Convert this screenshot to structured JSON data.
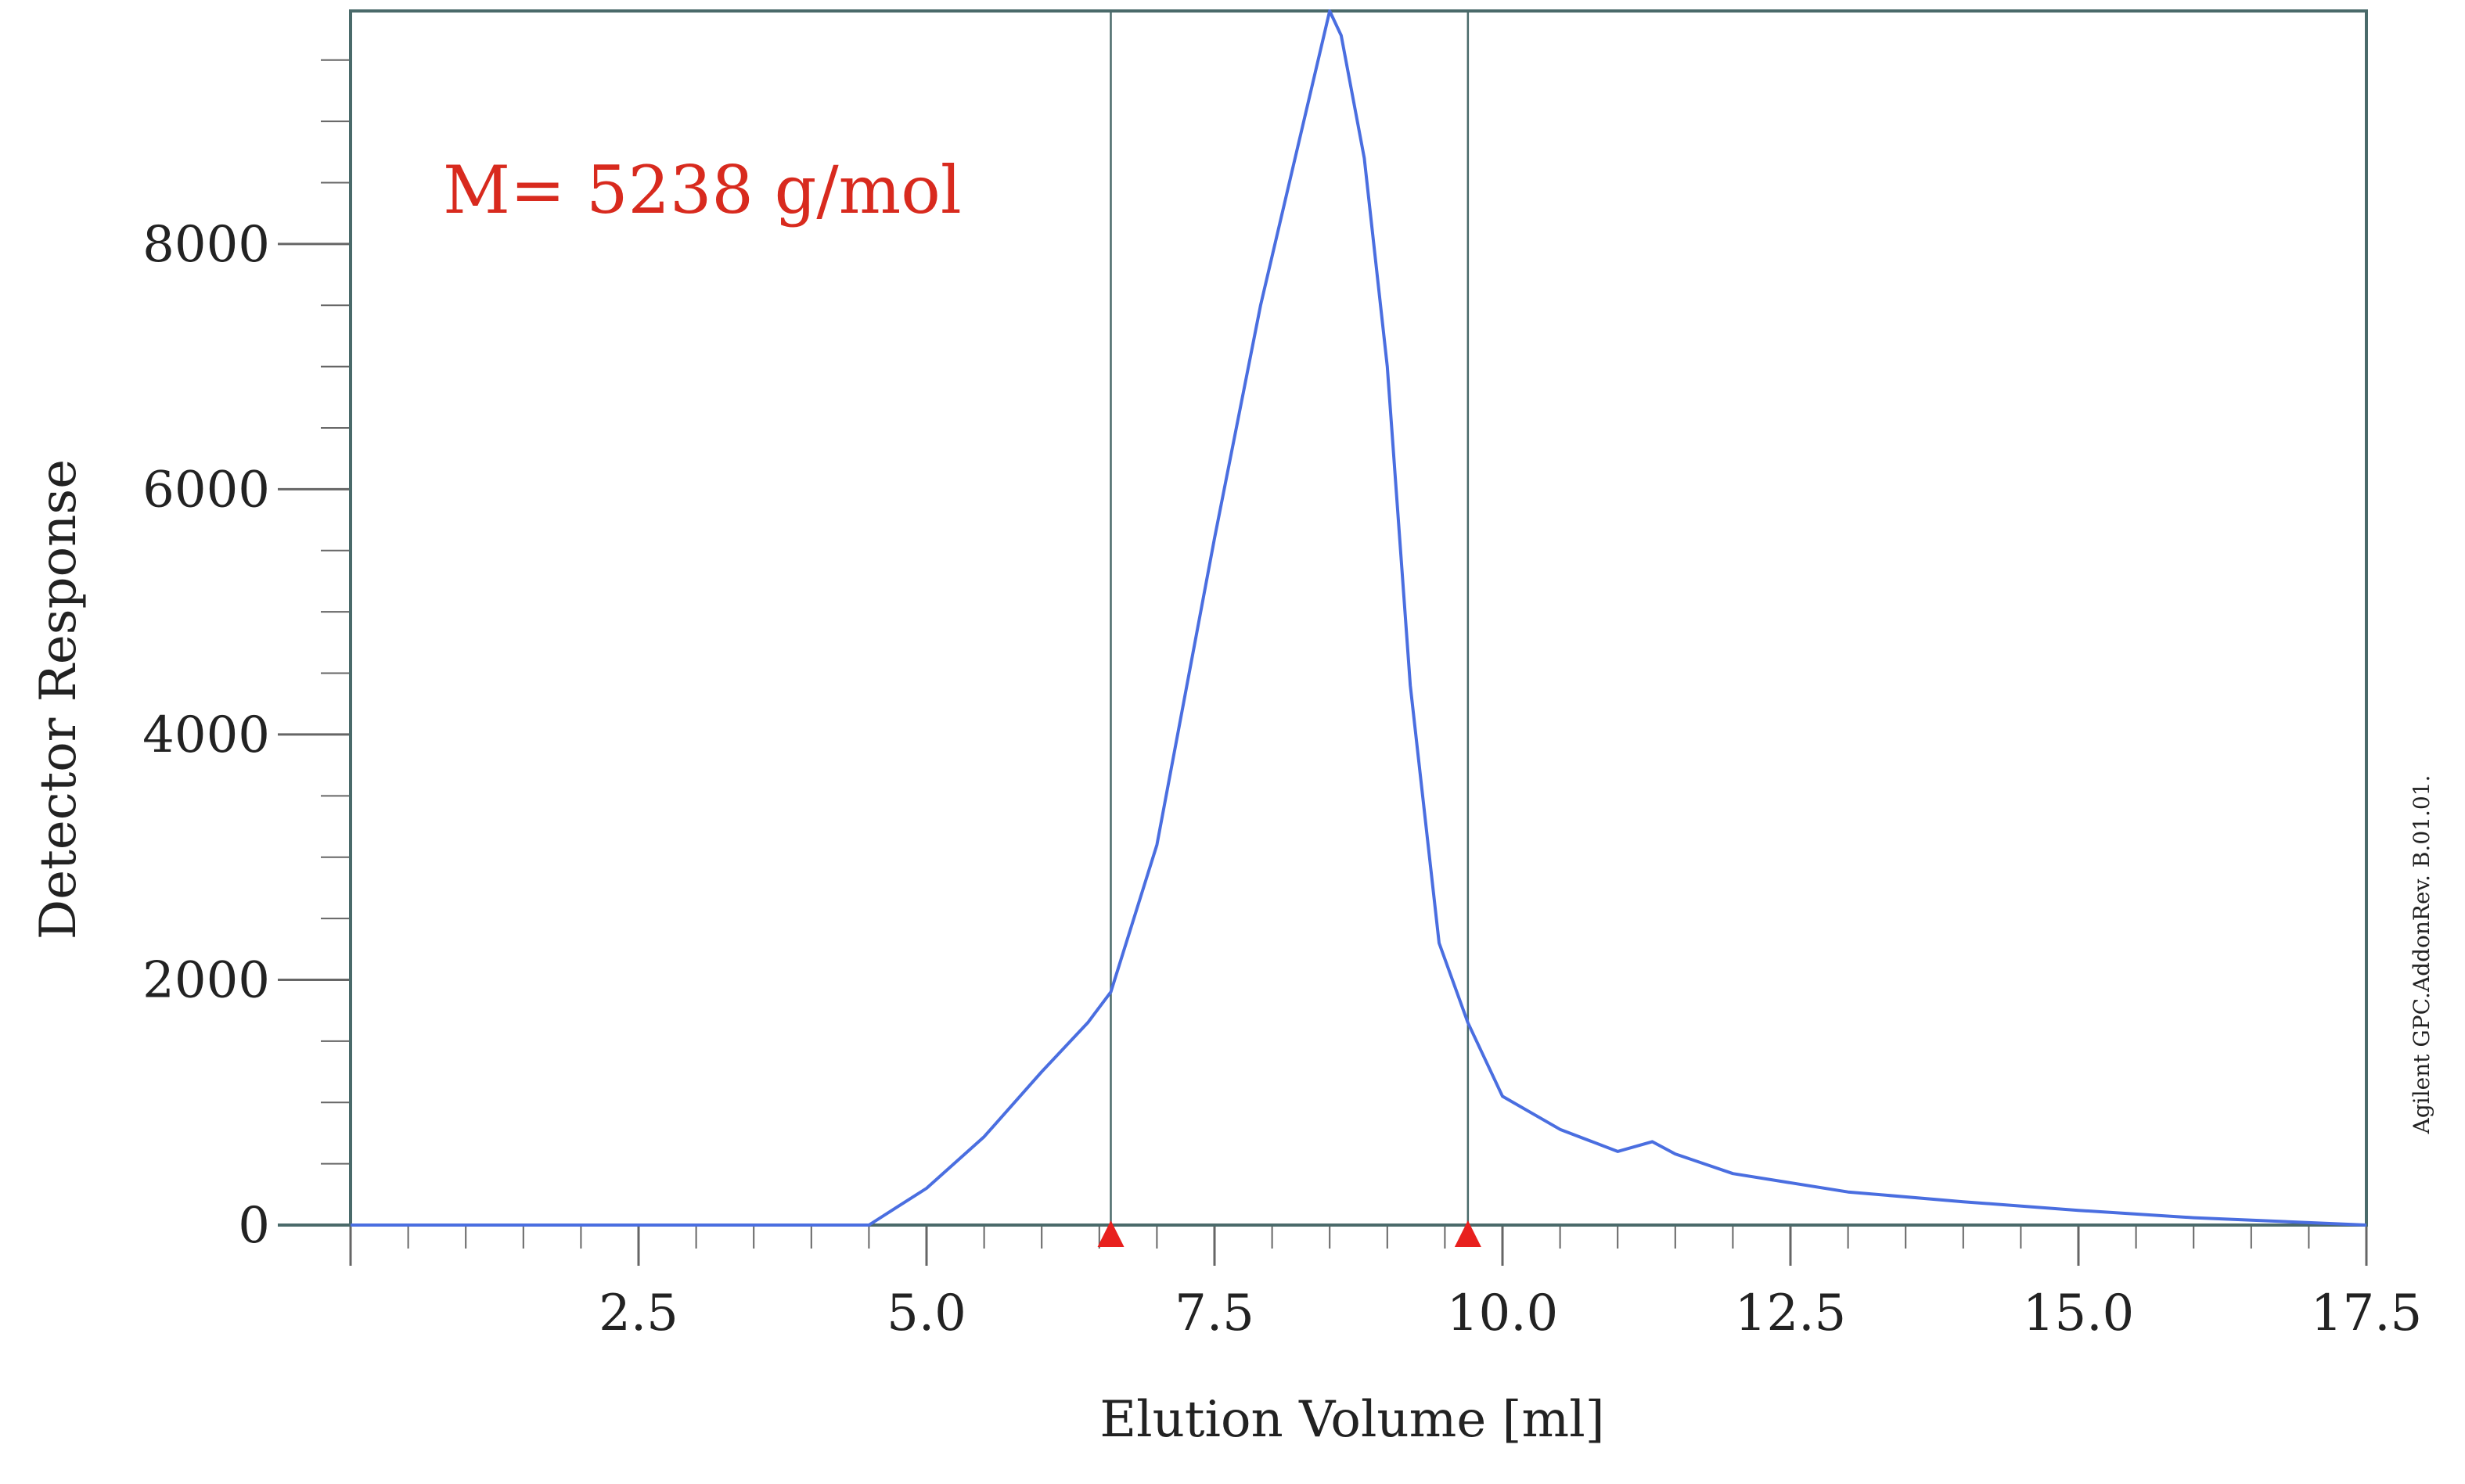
{
  "chart_data": {
    "type": "line",
    "title": "",
    "xlabel": "Elution Volume [ml]",
    "ylabel": "Detector Response",
    "xlim": [
      0,
      17.5
    ],
    "ylim": [
      0,
      9900
    ],
    "x_ticks": [
      2.5,
      5.0,
      7.5,
      10.0,
      12.5,
      15.0,
      17.5
    ],
    "x_tick_labels": [
      "2.5",
      "5.0",
      "7.5",
      "10.0",
      "12.5",
      "15.0",
      "17.5"
    ],
    "y_ticks": [
      0,
      2000,
      4000,
      6000,
      8000
    ],
    "y_tick_labels": [
      "0",
      "2000",
      "4000",
      "6000",
      "8000"
    ],
    "grid": false,
    "legend": "none",
    "annotation": "M= 5238 g/mol",
    "watermark": "Agilent GPC.AddonRev. B.01.01.",
    "markers": [
      {
        "x": 6.6,
        "name": "integration-start"
      },
      {
        "x": 9.7,
        "name": "integration-end"
      }
    ],
    "colors": {
      "line": "#4a6ee0",
      "frame": "#4a6a6a",
      "marker": "#e8201e",
      "annotation": "#d82a1e",
      "tick": "#666666"
    },
    "series": [
      {
        "x": [
          0,
          4.5,
          5.0,
          5.5,
          6.0,
          6.4,
          6.6,
          7.0,
          7.5,
          7.9,
          8.2,
          8.5,
          8.6,
          8.8,
          9.0,
          9.2,
          9.45,
          9.7,
          10.0,
          10.5,
          11.0,
          11.3,
          11.5,
          12.0,
          13.0,
          14.0,
          15.0,
          16.0,
          17.0,
          17.5
        ],
        "values": [
          0,
          0,
          300,
          720,
          1250,
          1650,
          1900,
          3100,
          5600,
          7500,
          8700,
          9900,
          9700,
          8700,
          7000,
          4400,
          2300,
          1650,
          1050,
          780,
          600,
          680,
          580,
          420,
          270,
          190,
          120,
          60,
          20,
          0
        ]
      }
    ]
  }
}
